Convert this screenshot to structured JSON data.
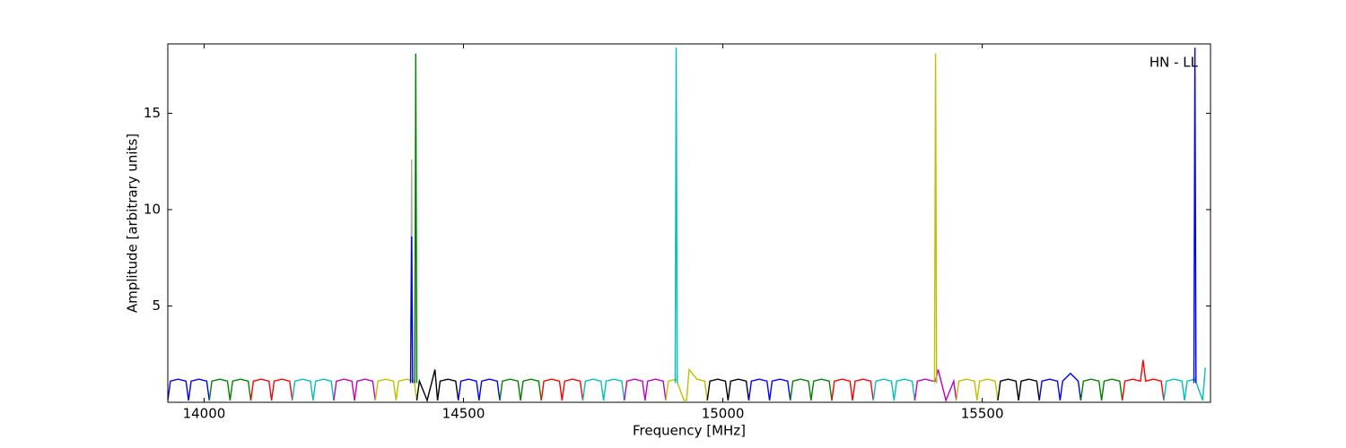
{
  "chart_data": {
    "type": "line",
    "xlabel": "Frequency [MHz]",
    "ylabel": "Amplitude [arbitrary units]",
    "annotation": "HN - LL",
    "xlim": [
      13930,
      15940
    ],
    "ylim": [
      0,
      18.6
    ],
    "xticks": [
      14000,
      14500,
      15000,
      15500
    ],
    "yticks": [
      5,
      10,
      15
    ],
    "series": [
      {
        "color": "#0000ff",
        "x": [
          13930,
          13935,
          13950,
          13965,
          13970,
          13975,
          13990,
          14005,
          14010
        ],
        "values": [
          0.1,
          1.1,
          1.2,
          1.1,
          0.1,
          1.1,
          1.2,
          1.1,
          0.1
        ]
      },
      {
        "color": "#008000",
        "x": [
          14010,
          14015,
          14030,
          14045,
          14050,
          14055,
          14070,
          14085,
          14090
        ],
        "values": [
          0.1,
          1.1,
          1.2,
          1.1,
          0.1,
          1.1,
          1.2,
          1.1,
          0.1
        ]
      },
      {
        "color": "#ff0000",
        "x": [
          14090,
          14095,
          14110,
          14125,
          14130,
          14135,
          14150,
          14165,
          14170
        ],
        "values": [
          0.1,
          1.1,
          1.2,
          1.1,
          0.1,
          1.1,
          1.2,
          1.1,
          0.1
        ]
      },
      {
        "color": "#00bfbf",
        "x": [
          14170,
          14175,
          14190,
          14205,
          14210,
          14215,
          14230,
          14245,
          14250
        ],
        "values": [
          0.1,
          1.1,
          1.2,
          1.1,
          0.1,
          1.1,
          1.2,
          1.1,
          0.1
        ]
      },
      {
        "color": "#bf00bf",
        "x": [
          14250,
          14255,
          14270,
          14285,
          14290,
          14295,
          14310,
          14325,
          14330
        ],
        "values": [
          0.1,
          1.1,
          1.2,
          1.1,
          0.1,
          1.1,
          1.2,
          1.1,
          0.1
        ]
      },
      {
        "color": "#bfbf00",
        "x": [
          14330,
          14335,
          14350,
          14365,
          14370,
          14375,
          14390,
          14405,
          14410
        ],
        "values": [
          0.1,
          1.1,
          1.2,
          1.1,
          0.1,
          1.1,
          1.2,
          1.1,
          0.1
        ]
      },
      {
        "color": "#000000",
        "x": [
          14410,
          14415,
          14430,
          14445,
          14450,
          14455,
          14470,
          14485,
          14490
        ],
        "values": [
          0.1,
          1.1,
          0.1,
          1.7,
          0.1,
          1.1,
          1.2,
          1.1,
          0.1
        ]
      },
      {
        "color": "#0000ff",
        "x": [
          14490,
          14495,
          14510,
          14525,
          14530,
          14535,
          14550,
          14565,
          14570
        ],
        "values": [
          0.1,
          1.1,
          1.2,
          1.1,
          0.1,
          1.1,
          1.2,
          1.1,
          0.1
        ]
      },
      {
        "color": "#008000",
        "x": [
          14570,
          14575,
          14590,
          14605,
          14610,
          14615,
          14630,
          14645,
          14650
        ],
        "values": [
          0.1,
          1.1,
          1.2,
          1.1,
          0.1,
          1.1,
          1.2,
          1.1,
          0.1
        ]
      },
      {
        "color": "#ff0000",
        "x": [
          14650,
          14655,
          14670,
          14685,
          14690,
          14695,
          14710,
          14725,
          14730
        ],
        "values": [
          0.1,
          1.1,
          1.2,
          1.1,
          0.1,
          1.1,
          1.2,
          1.1,
          0.1
        ]
      },
      {
        "color": "#00bfbf",
        "x": [
          14730,
          14735,
          14750,
          14765,
          14770,
          14775,
          14790,
          14805,
          14810
        ],
        "values": [
          0.1,
          1.1,
          1.2,
          1.1,
          0.1,
          1.1,
          1.2,
          1.1,
          0.1
        ]
      },
      {
        "color": "#bf00bf",
        "x": [
          14810,
          14815,
          14830,
          14845,
          14850,
          14855,
          14870,
          14885,
          14890
        ],
        "values": [
          0.1,
          1.1,
          1.2,
          1.1,
          0.1,
          1.1,
          1.2,
          1.1,
          0.1
        ]
      },
      {
        "color": "#bfbf00",
        "x": [
          14890,
          14895,
          14910,
          14925,
          14930,
          14935,
          14950,
          14965,
          14970
        ],
        "values": [
          0.1,
          1.1,
          1.2,
          0.1,
          0.1,
          1.7,
          1.2,
          1.1,
          0.1
        ]
      },
      {
        "color": "#000000",
        "x": [
          14970,
          14975,
          14990,
          15005,
          15010,
          15015,
          15030,
          15045,
          15050
        ],
        "values": [
          0.1,
          1.1,
          1.2,
          1.1,
          0.1,
          1.1,
          1.2,
          1.1,
          0.1
        ]
      },
      {
        "color": "#0000ff",
        "x": [
          15050,
          15055,
          15070,
          15085,
          15090,
          15095,
          15110,
          15125,
          15130
        ],
        "values": [
          0.1,
          1.1,
          1.2,
          1.1,
          0.1,
          1.1,
          1.2,
          1.1,
          0.1
        ]
      },
      {
        "color": "#008000",
        "x": [
          15130,
          15135,
          15150,
          15165,
          15170,
          15175,
          15190,
          15205,
          15210
        ],
        "values": [
          0.1,
          1.1,
          1.2,
          1.1,
          0.1,
          1.1,
          1.2,
          1.1,
          0.1
        ]
      },
      {
        "color": "#ff0000",
        "x": [
          15210,
          15215,
          15230,
          15245,
          15250,
          15255,
          15270,
          15285,
          15290
        ],
        "values": [
          0.1,
          1.1,
          1.2,
          1.1,
          0.1,
          1.1,
          1.2,
          1.1,
          0.1
        ]
      },
      {
        "color": "#00bfbf",
        "x": [
          15290,
          15295,
          15310,
          15325,
          15330,
          15335,
          15350,
          15365,
          15370
        ],
        "values": [
          0.1,
          1.1,
          1.2,
          1.1,
          0.1,
          1.1,
          1.2,
          1.1,
          0.1
        ]
      },
      {
        "color": "#bf00bf",
        "x": [
          15370,
          15375,
          15390,
          15405,
          15410,
          15415,
          15430,
          15445,
          15450
        ],
        "values": [
          0.1,
          1.1,
          1.2,
          1.1,
          1.1,
          1.7,
          0.1,
          1.1,
          0.1
        ]
      },
      {
        "color": "#bfbf00",
        "x": [
          15450,
          15455,
          15470,
          15485,
          15490,
          15495,
          15510,
          15525,
          15530
        ],
        "values": [
          0.1,
          1.1,
          1.2,
          1.1,
          0.1,
          1.1,
          1.2,
          1.1,
          0.1
        ]
      },
      {
        "color": "#000000",
        "x": [
          15530,
          15535,
          15550,
          15565,
          15570,
          15575,
          15590,
          15605,
          15610
        ],
        "values": [
          0.1,
          1.1,
          1.2,
          1.1,
          0.1,
          1.1,
          1.2,
          1.1,
          0.1
        ]
      },
      {
        "color": "#0000ff",
        "x": [
          15610,
          15615,
          15630,
          15645,
          15650,
          15655,
          15670,
          15685,
          15690
        ],
        "values": [
          0.1,
          1.1,
          1.2,
          1.1,
          0.1,
          1.1,
          1.5,
          1.1,
          0.1
        ]
      },
      {
        "color": "#008000",
        "x": [
          15690,
          15695,
          15710,
          15725,
          15730,
          15735,
          15750,
          15765,
          15770
        ],
        "values": [
          0.1,
          1.1,
          1.2,
          1.1,
          0.1,
          1.1,
          1.2,
          1.1,
          0.1
        ]
      },
      {
        "color": "#ff0000",
        "x": [
          15770,
          15775,
          15790,
          15805,
          15810,
          15815,
          15830,
          15845,
          15850
        ],
        "values": [
          0.1,
          1.1,
          1.2,
          1.1,
          2.2,
          1.1,
          1.2,
          1.1,
          0.1
        ]
      },
      {
        "color": "#00bfbf",
        "x": [
          15850,
          15855,
          15870,
          15885,
          15890,
          15895,
          15910,
          15925,
          15930
        ],
        "values": [
          0.1,
          1.1,
          1.2,
          1.1,
          0.1,
          1.1,
          1.2,
          0.1,
          1.8
        ]
      },
      {
        "color": "#aaaaaa",
        "x": [
          14398,
          14400,
          14402
        ],
        "values": [
          1.0,
          12.6,
          1.0
        ]
      },
      {
        "color": "#0000ff",
        "x": [
          14398,
          14400,
          14402
        ],
        "values": [
          1.0,
          8.6,
          1.0
        ]
      },
      {
        "color": "#008000",
        "x": [
          14406,
          14408,
          14410
        ],
        "values": [
          1.0,
          18.1,
          1.0
        ]
      },
      {
        "color": "#00bfbf",
        "x": [
          14908,
          14910,
          14912
        ],
        "values": [
          1.0,
          18.4,
          1.0
        ]
      },
      {
        "color": "#bfbf00",
        "x": [
          15408,
          15410,
          15412
        ],
        "values": [
          1.0,
          18.1,
          1.0
        ]
      },
      {
        "color": "#0000ff",
        "x": [
          15908,
          15910,
          15912
        ],
        "values": [
          1.0,
          18.4,
          1.0
        ]
      }
    ]
  }
}
